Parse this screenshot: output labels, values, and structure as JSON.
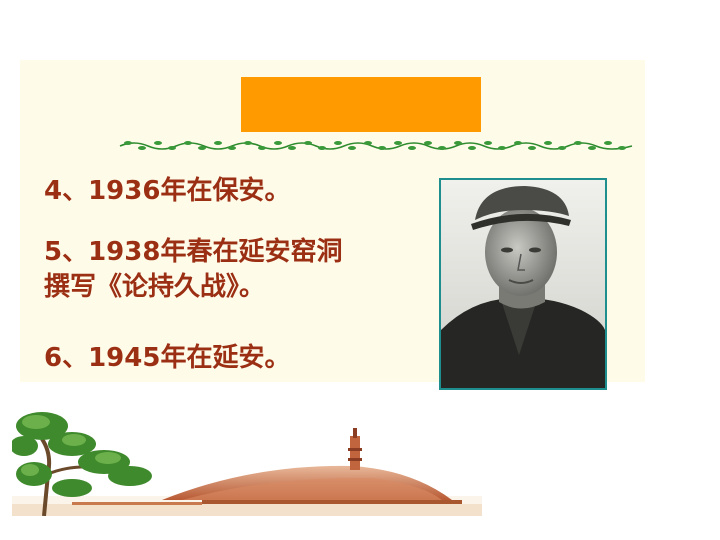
{
  "slide": {
    "lines": [
      "4、1936年在保安。",
      "5、1938年春在延安窑洞",
      "撰写《论持久战》。",
      "6、1945年在延安。"
    ]
  },
  "colors": {
    "title_box": "#ff9b00",
    "panel": "#fffbe9",
    "text": "#9b2f13",
    "vine": "#2e8b2e",
    "photo_border": "#1e8e8e"
  },
  "icons": {
    "divider": "vine-divider-icon",
    "photo": "portrait-photo",
    "decoration": "pagoda-landscape-illustration"
  }
}
